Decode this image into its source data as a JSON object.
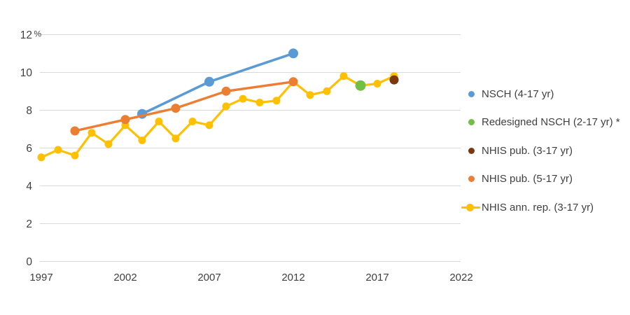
{
  "chart_data": {
    "type": "line",
    "title": "",
    "xlabel": "",
    "ylabel": "%",
    "y_axis_unit": "%",
    "x_ticks": [
      1997,
      2002,
      2007,
      2012,
      2017,
      2022
    ],
    "y_ticks": [
      0,
      2,
      4,
      6,
      8,
      10,
      12
    ],
    "xlim": [
      1997,
      2022
    ],
    "ylim": [
      0,
      12
    ],
    "grid": true,
    "legend_position": "right",
    "colors": {
      "gridline": "#D9D9D9",
      "axis_text": "#3F3F3F",
      "background": "#FFFFFF"
    },
    "series": [
      {
        "name": "NSCH (4-17 yr)",
        "color": "#5B9BD5",
        "style": "line-marker",
        "legend_marker": "dot",
        "marker_radius": 7,
        "line_width": 3.6,
        "z": 2,
        "x": [
          2003,
          2007,
          2012
        ],
        "y": [
          7.8,
          9.5,
          11.0
        ]
      },
      {
        "name": "Redesigned NSCH (2-17 yr) *",
        "color": "#71BF44",
        "style": "marker",
        "legend_marker": "dot",
        "marker_radius": 7.5,
        "line_width": 0,
        "z": 4,
        "x": [
          2016
        ],
        "y": [
          9.3
        ]
      },
      {
        "name": "NHIS pub. (3-17 yr)",
        "color": "#7C370E",
        "style": "marker",
        "legend_marker": "dot",
        "marker_radius": 6.5,
        "line_width": 0,
        "z": 5,
        "x": [
          2018
        ],
        "y": [
          9.6
        ]
      },
      {
        "name": "NHIS pub. (5-17 yr)",
        "color": "#ED7D31",
        "style": "line-marker",
        "legend_marker": "dot",
        "marker_radius": 6.5,
        "line_width": 3.4,
        "z": 3,
        "x": [
          1999,
          2002,
          2005,
          2008,
          2012
        ],
        "y": [
          6.9,
          7.5,
          8.1,
          9.0,
          9.5
        ]
      },
      {
        "name": "NHIS ann. rep. (3-17 yr)",
        "color": "#FFC000",
        "style": "line-marker",
        "legend_marker": "line-dot",
        "marker_radius": 5.5,
        "line_width": 3.2,
        "z": 1,
        "x": [
          1997,
          1998,
          1999,
          2000,
          2001,
          2002,
          2003,
          2004,
          2005,
          2006,
          2007,
          2008,
          2009,
          2010,
          2011,
          2012,
          2013,
          2014,
          2015,
          2016,
          2017,
          2018
        ],
        "y": [
          5.5,
          5.9,
          5.6,
          6.8,
          6.2,
          7.2,
          6.4,
          7.4,
          6.5,
          7.4,
          7.2,
          8.2,
          8.6,
          8.4,
          8.5,
          9.5,
          8.8,
          9.0,
          9.8,
          9.3,
          9.4,
          9.8
        ]
      }
    ]
  }
}
